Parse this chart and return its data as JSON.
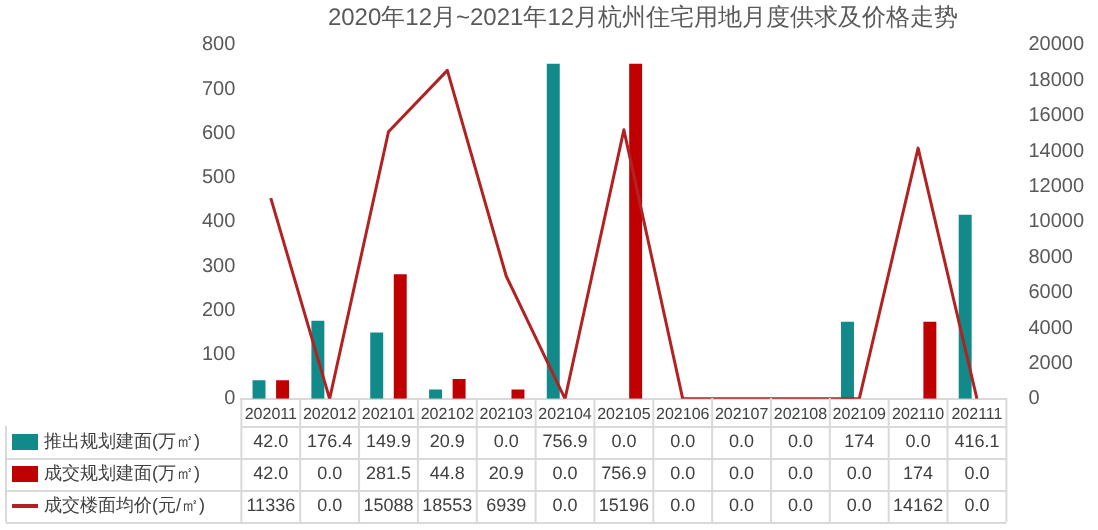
{
  "chart_data": {
    "type": "bar",
    "title": "2020年12月~2021年12月杭州住宅用地月度供求及价格走势",
    "categories": [
      "202011",
      "202012",
      "202101",
      "202102",
      "202103",
      "202104",
      "202105",
      "202106",
      "202107",
      "202108",
      "202109",
      "202110",
      "202111"
    ],
    "series": [
      {
        "name": "推出规划建面(万㎡)",
        "color": "#138a8a",
        "values": [
          42.0,
          176.4,
          149.9,
          20.9,
          0.0,
          756.9,
          0.0,
          0.0,
          0.0,
          0.0,
          174,
          0.0,
          416.1
        ],
        "value_labels": [
          "42.0",
          "176.4",
          "149.9",
          "20.9",
          "0.0",
          "756.9",
          "0.0",
          "0.0",
          "0.0",
          "0.0",
          "174",
          "0.0",
          "416.1"
        ]
      },
      {
        "name": "成交规划建面(万㎡)",
        "color": "#c00000",
        "values": [
          42.0,
          0.0,
          281.5,
          44.8,
          20.9,
          0.0,
          756.9,
          0.0,
          0.0,
          0.0,
          0.0,
          174,
          0.0
        ],
        "value_labels": [
          "42.0",
          "0.0",
          "281.5",
          "44.8",
          "20.9",
          "0.0",
          "756.9",
          "0.0",
          "0.0",
          "0.0",
          "0.0",
          "174",
          "0.0"
        ]
      },
      {
        "name": "成交楼面均价(元/㎡)",
        "type": "line",
        "axis": "y2",
        "color": "#b22222",
        "values": [
          11336,
          0.0,
          15088,
          18553,
          6939,
          0.0,
          15196,
          0.0,
          0.0,
          0.0,
          0.0,
          14162,
          0.0
        ],
        "value_labels": [
          "11336",
          "0.0",
          "15088",
          "18553",
          "6939",
          "0.0",
          "15196",
          "0.0",
          "0.0",
          "0.0",
          "0.0",
          "14162",
          "0.0"
        ]
      }
    ],
    "ylim": [
      0,
      800
    ],
    "yticks": [
      0,
      100,
      200,
      300,
      400,
      500,
      600,
      700,
      800
    ],
    "y2lim": [
      0,
      20000
    ],
    "y2ticks": [
      0,
      2000,
      4000,
      6000,
      8000,
      10000,
      12000,
      14000,
      16000,
      18000,
      20000
    ],
    "grid": false,
    "legend": "bottom",
    "marker": "none"
  }
}
